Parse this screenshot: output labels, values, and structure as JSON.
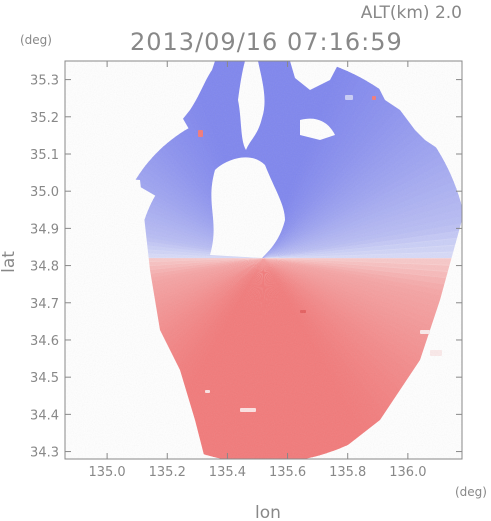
{
  "header": {
    "altitude_label": "ALT(km)  2.0",
    "timestamp": "2013/09/16 07:16:59"
  },
  "chart_data": {
    "type": "heatmap",
    "title": "2013/09/16 07:16:59",
    "annotation": "ALT(km)  2.0",
    "xlabel": "lon",
    "ylabel": "lat",
    "x_unit": "(deg)",
    "y_unit": "(deg)",
    "xlim": [
      134.86,
      136.18
    ],
    "ylim": [
      34.28,
      35.35
    ],
    "x_ticks": [
      135.0,
      135.2,
      135.4,
      135.6,
      135.8,
      136.0
    ],
    "x_tick_labels": [
      "135.0",
      "135.2",
      "135.4",
      "135.6",
      "135.8",
      "136.0"
    ],
    "y_ticks": [
      34.3,
      34.4,
      34.5,
      34.6,
      34.7,
      34.8,
      34.9,
      35.0,
      35.1,
      35.2,
      35.3
    ],
    "y_tick_labels": [
      "34.3",
      "34.4",
      "34.5",
      "34.6",
      "34.7",
      "34.8",
      "34.9",
      "35.0",
      "35.1",
      "35.2",
      "35.3"
    ],
    "radar_center": {
      "lon": 135.52,
      "lat": 34.82
    },
    "colors": {
      "negative": "#7f86ee",
      "negative_light": "#dfe2f8",
      "positive": "#f27a7a",
      "positive_light": "#f9d0d0",
      "axis": "#888888"
    }
  }
}
